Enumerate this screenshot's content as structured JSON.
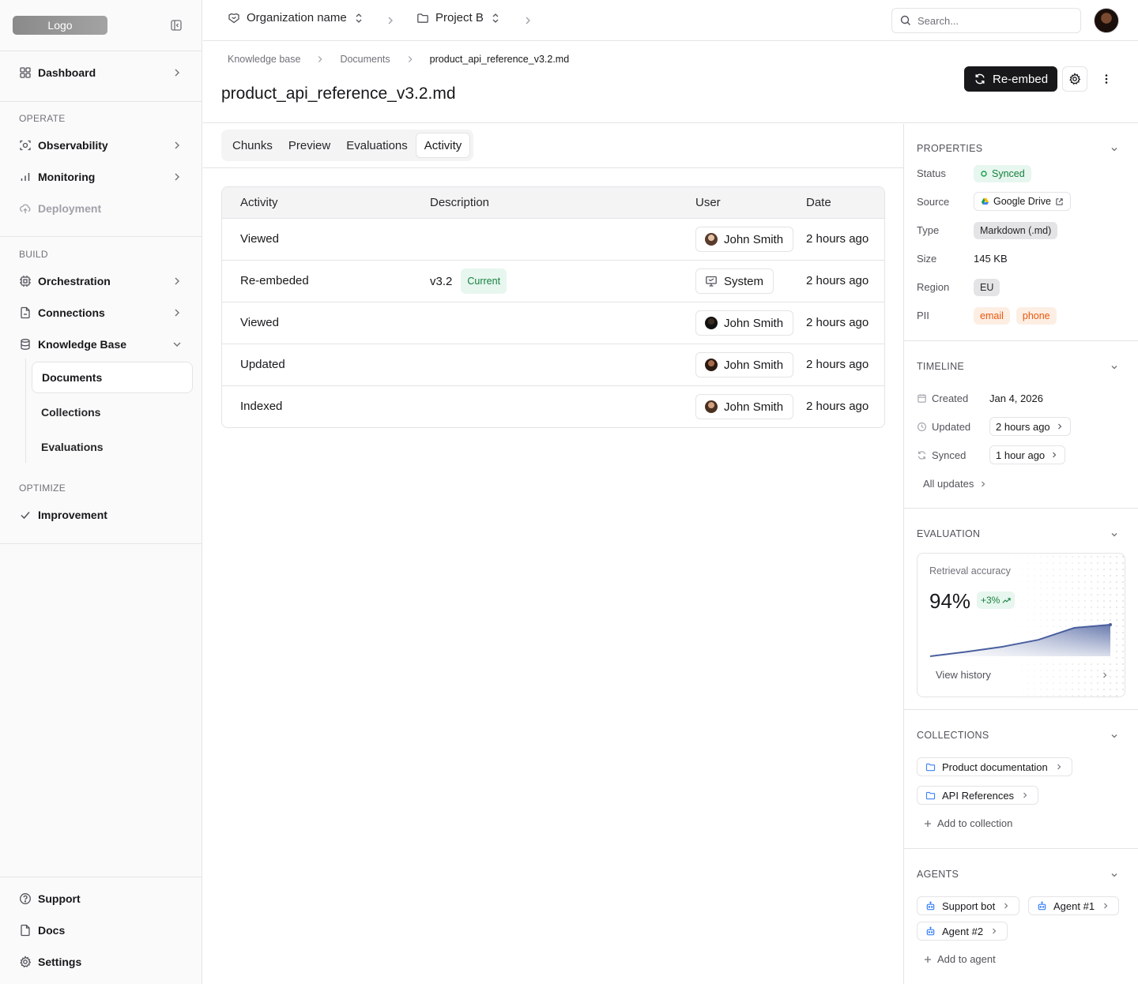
{
  "sidebar": {
    "logo": "Logo",
    "dashboard": "Dashboard",
    "sections": {
      "operate": "OPERATE",
      "build": "BUILD",
      "optimize": "OPTIMIZE"
    },
    "operate_items": [
      "Observability",
      "Monitoring",
      "Deployment"
    ],
    "build_items": [
      "Orchestration",
      "Connections",
      "Knowledge Base"
    ],
    "kb_sub_items": [
      "Documents",
      "Collections",
      "Evaluations"
    ],
    "optimize_items": [
      "Improvement"
    ],
    "footer_items": [
      "Support",
      "Docs",
      "Settings"
    ]
  },
  "topbar": {
    "org": "Organization name",
    "project": "Project B",
    "search_placeholder": "Search..."
  },
  "header": {
    "breadcrumb": [
      "Knowledge base",
      "Documents",
      "product_api_reference_v3.2.md"
    ],
    "title": "product_api_reference_v3.2.md",
    "reembed_label": "Re-embed"
  },
  "tabs": [
    "Chunks",
    "Preview",
    "Evaluations",
    "Activity"
  ],
  "active_tab": "Activity",
  "table": {
    "columns": [
      "Activity",
      "Description",
      "User",
      "Date"
    ],
    "rows": [
      {
        "activity": "Viewed",
        "description": "",
        "badge": "",
        "user": "John Smith",
        "date": "2 hours ago"
      },
      {
        "activity": "Re-embeded",
        "description": "v3.2",
        "badge": "Current",
        "user": "System",
        "date": "2 hours ago"
      },
      {
        "activity": "Viewed",
        "description": "",
        "badge": "",
        "user": "John Smith",
        "date": "2 hours ago"
      },
      {
        "activity": "Updated",
        "description": "",
        "badge": "",
        "user": "John Smith",
        "date": "2 hours ago"
      },
      {
        "activity": "Indexed",
        "description": "",
        "badge": "",
        "user": "John Smith",
        "date": "2 hours ago"
      }
    ]
  },
  "properties": {
    "title": "PROPERTIES",
    "status_label": "Status",
    "status": "Synced",
    "source_label": "Source",
    "source": "Google Drive",
    "type_label": "Type",
    "type": "Markdown (.md)",
    "size_label": "Size",
    "size": "145 KB",
    "region_label": "Region",
    "region": "EU",
    "pii_label": "PII",
    "pii": [
      "email",
      "phone"
    ]
  },
  "timeline": {
    "title": "TIMELINE",
    "created_label": "Created",
    "created": "Jan 4, 2026",
    "updated_label": "Updated",
    "updated": "2 hours ago",
    "synced_label": "Synced",
    "synced": "1 hour ago",
    "all_updates": "All updates"
  },
  "evaluation": {
    "title": "EVALUATION",
    "metric_label": "Retrieval accuracy",
    "metric_value": "94%",
    "delta": "+3%",
    "view_history": "View history",
    "trend": [
      0,
      0.14,
      0.3,
      0.52,
      0.9,
      1.0
    ]
  },
  "collections": {
    "title": "COLLECTIONS",
    "items": [
      "Product documentation",
      "API References"
    ],
    "add_label": "Add to collection"
  },
  "agents": {
    "title": "AGENTS",
    "items": [
      "Support bot",
      "Agent #1",
      "Agent #2"
    ],
    "add_label": "Add to agent"
  },
  "colors": {
    "primary": "#18181b",
    "success": "#15803d",
    "success_bg": "#e7f6ee",
    "warning": "#ea580c",
    "chart": "#4a5f9e"
  }
}
